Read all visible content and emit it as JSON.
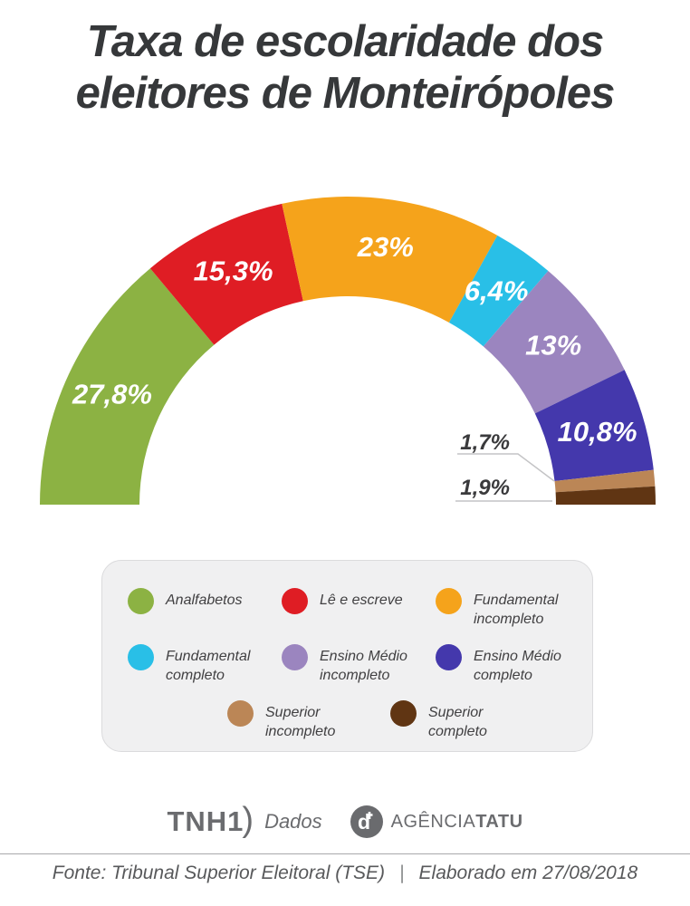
{
  "title": {
    "line1": "Taxa de escolaridade dos",
    "line2": "eleitores de Monteirópoles"
  },
  "chart_data": {
    "type": "pie",
    "variant": "half-donut-gauge",
    "title": "Taxa de escolaridade dos eleitores de Monteirópoles",
    "unit": "%",
    "legend_position": "bottom",
    "total": 99.9,
    "segments": [
      {
        "label": "Analfabetos",
        "value": 27.8,
        "display": "27,8%",
        "color": "#8CB243",
        "label_inside": true
      },
      {
        "label": "Lê e escreve",
        "value": 15.3,
        "display": "15,3%",
        "color": "#DF1D24",
        "label_inside": true
      },
      {
        "label": "Fundamental incompleto",
        "value": 23.0,
        "display": "23%",
        "color": "#F5A31B",
        "label_inside": true
      },
      {
        "label": "Fundamental completo",
        "value": 6.4,
        "display": "6,4%",
        "color": "#29BFE7",
        "label_inside": true
      },
      {
        "label": "Ensino Médio incompleto",
        "value": 13.0,
        "display": "13%",
        "color": "#9B85BF",
        "label_inside": true
      },
      {
        "label": "Ensino Médio completo",
        "value": 10.8,
        "display": "10,8%",
        "color": "#4438AC",
        "label_inside": true
      },
      {
        "label": "Superior incompleto",
        "value": 1.7,
        "display": "1,7%",
        "color": "#BB8656",
        "label_inside": false
      },
      {
        "label": "Superior completo",
        "value": 1.9,
        "display": "1,9%",
        "color": "#603513",
        "label_inside": false
      }
    ]
  },
  "footer": {
    "tnh1_word": "TNH1",
    "tnh1_paren": ")",
    "tnh1_dados": "Dados",
    "agencia_glyph": "d",
    "agencia_prefix": "AGÊNCIA",
    "agencia_bold": "TATU",
    "source_label": "Fonte:  Tribunal Superior Eleitoral (TSE)",
    "separator": "|",
    "elaborated": "Elaborado em 27/08/2018"
  }
}
